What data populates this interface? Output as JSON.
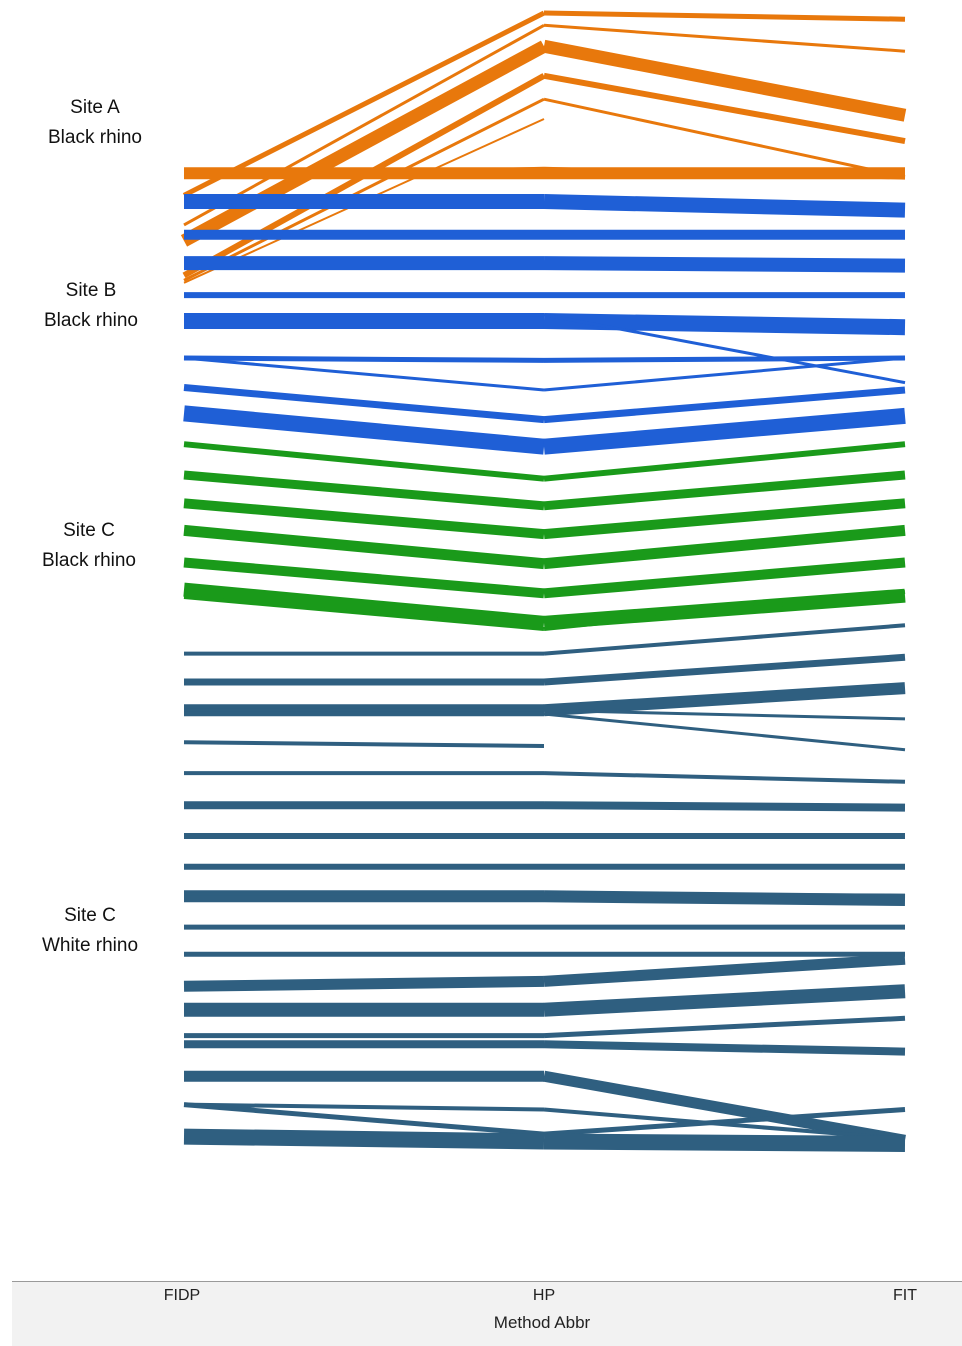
{
  "chart_data": {
    "type": "line",
    "description_axis": "parallel coordinates / slope chart of individual ranks per method",
    "x": [
      "FIDP",
      "HP",
      "FIT"
    ],
    "xlabel": "Method Abbr",
    "y_inverted": true,
    "ylim": [
      0,
      100
    ],
    "grid": false,
    "legend": "none",
    "groups": [
      {
        "site": "Site A",
        "species": "Black rhino",
        "color": "#e8780c",
        "lines": [
          {
            "values": [
              14.8,
              0.0,
              0.5
            ],
            "weight": 5
          },
          {
            "values": [
              18.5,
              2.7,
              8.3
            ],
            "weight": 13
          },
          {
            "values": [
              21.3,
              5.1,
              10.4
            ],
            "weight": 6
          },
          {
            "values": [
              21.7,
              7.0,
              13.3
            ],
            "weight": 3
          },
          {
            "values": [
              21.9,
              8.6,
              null
            ],
            "weight": 2
          },
          {
            "values": [
              17.2,
              1.0,
              3.1
            ],
            "weight": 3
          },
          {
            "values": [
              13.0,
              13.0,
              13.0
            ],
            "weight": 12
          },
          {
            "values": [
              13.3,
              12.6,
              13.4
            ],
            "weight": 3
          }
        ]
      },
      {
        "site": "Site B",
        "species": "Black rhino",
        "color": "#1f5fd6",
        "lines": [
          {
            "values": [
              15.3,
              15.3,
              16.0
            ],
            "weight": 15
          },
          {
            "values": [
              18.0,
              18.0,
              18.0
            ],
            "weight": 10
          },
          {
            "values": [
              20.3,
              20.3,
              20.5
            ],
            "weight": 14
          },
          {
            "values": [
              22.9,
              22.9,
              22.9
            ],
            "weight": 6
          },
          {
            "values": [
              25.0,
              25.0,
              25.5
            ],
            "weight": 16
          },
          {
            "values": [
              24.5,
              24.5,
              30.0
            ],
            "weight": 3
          },
          {
            "values": [
              28.0,
              28.2,
              28.0
            ],
            "weight": 5
          },
          {
            "values": [
              28.0,
              30.6,
              28.0
            ],
            "weight": 3
          },
          {
            "values": [
              30.4,
              33.0,
              30.6
            ],
            "weight": 7
          },
          {
            "values": [
              32.5,
              35.2,
              32.7
            ],
            "weight": 16
          }
        ]
      },
      {
        "site": "Site C",
        "species": "Black rhino",
        "color": "#1a9a1a",
        "lines": [
          {
            "values": [
              35.0,
              37.8,
              35.0
            ],
            "weight": 6
          },
          {
            "values": [
              37.5,
              40.0,
              37.5
            ],
            "weight": 9
          },
          {
            "values": [
              39.8,
              42.3,
              39.8
            ],
            "weight": 10
          },
          {
            "values": [
              42.0,
              44.7,
              42.0
            ],
            "weight": 11
          },
          {
            "values": [
              44.6,
              47.1,
              44.6
            ],
            "weight": 10
          },
          {
            "values": [
              46.8,
              49.5,
              47.3
            ],
            "weight": 14
          },
          {
            "values": [
              47.4,
              50.0,
              47.0
            ],
            "weight": 4
          }
        ]
      },
      {
        "site": "Site C",
        "species": "White rhino",
        "color": "#2f5f80",
        "lines": [
          {
            "values": [
              52.0,
              52.0,
              49.7
            ],
            "weight": 4
          },
          {
            "values": [
              54.3,
              54.3,
              52.3
            ],
            "weight": 7
          },
          {
            "values": [
              56.6,
              56.6,
              54.8
            ],
            "weight": 12
          },
          {
            "values": [
              56.6,
              56.6,
              57.3
            ],
            "weight": 3
          },
          {
            "values": [
              56.9,
              56.9,
              59.8
            ],
            "weight": 3
          },
          {
            "values": [
              59.2,
              59.5,
              null
            ],
            "weight": 4
          },
          {
            "values": [
              61.7,
              61.7,
              62.4
            ],
            "weight": 4
          },
          {
            "values": [
              64.3,
              64.3,
              64.5
            ],
            "weight": 8
          },
          {
            "values": [
              66.8,
              66.8,
              66.8
            ],
            "weight": 6
          },
          {
            "values": [
              69.3,
              69.3,
              69.3
            ],
            "weight": 6
          },
          {
            "values": [
              71.7,
              71.7,
              72.0
            ],
            "weight": 12
          },
          {
            "values": [
              71.5,
              71.5,
              71.6
            ],
            "weight": 3
          },
          {
            "values": [
              74.2,
              74.2,
              74.2
            ],
            "weight": 5
          },
          {
            "values": [
              76.4,
              76.4,
              76.4
            ],
            "weight": 5
          },
          {
            "values": [
              79.0,
              78.6,
              76.8
            ],
            "weight": 11
          },
          {
            "values": [
              80.9,
              80.9,
              79.4
            ],
            "weight": 14
          },
          {
            "values": [
              83.0,
              83.0,
              81.6
            ],
            "weight": 5
          },
          {
            "values": [
              83.7,
              83.7,
              84.3
            ],
            "weight": 8
          },
          {
            "values": [
              86.3,
              86.3,
              91.5
            ],
            "weight": 11
          },
          {
            "values": [
              88.6,
              91.0,
              89.0
            ],
            "weight": 5
          },
          {
            "values": [
              88.6,
              89.0,
              91.4
            ],
            "weight": 4
          },
          {
            "values": [
              91.2,
              91.6,
              91.8
            ],
            "weight": 16
          }
        ]
      }
    ]
  }
}
